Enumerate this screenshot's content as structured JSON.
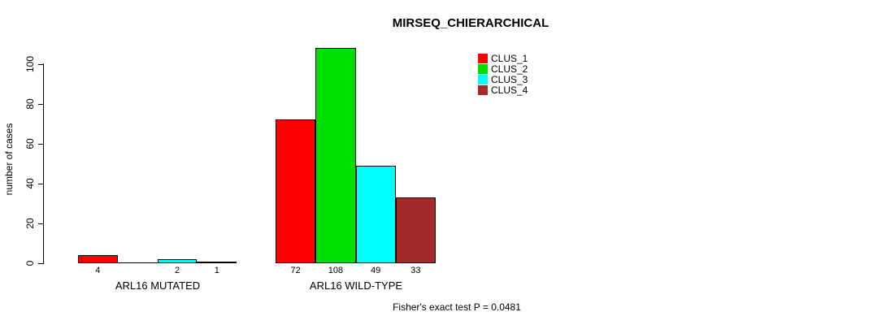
{
  "title": "MIRSEQ_CHIERARCHICAL",
  "footer": "Fisher's exact test P = 0.0481",
  "colors": {
    "background": "#ffffff",
    "axis": "#000000",
    "clus_1": "#FF0000",
    "clus_2": "#00E000",
    "clus_3": "#00FFFF",
    "clus_4": "#A52A2A"
  },
  "chart_data": {
    "type": "bar",
    "title": "MIRSEQ_CHIERARCHICAL",
    "xlabel": "",
    "ylabel": "number of cases",
    "ylim": [
      0,
      100
    ],
    "yticks": [
      0,
      20,
      40,
      60,
      80,
      100
    ],
    "grid": "off",
    "legend_position": "top-right",
    "categories": [
      "ARL16 MUTATED",
      "ARL16 WILD-TYPE"
    ],
    "series": [
      {
        "name": "CLUS_1",
        "color": "#FF0000",
        "values": [
          4,
          72
        ]
      },
      {
        "name": "CLUS_2",
        "color": "#00E000",
        "values": [
          0,
          108
        ]
      },
      {
        "name": "CLUS_3",
        "color": "#00FFFF",
        "values": [
          2,
          49
        ]
      },
      {
        "name": "CLUS_4",
        "color": "#A52A2A",
        "values": [
          1,
          33
        ]
      }
    ],
    "bar_value_labels": {
      "ARL16 MUTATED": [
        4,
        null,
        2,
        1
      ],
      "ARL16 WILD-TYPE": [
        72,
        108,
        49,
        33
      ]
    },
    "annotation": "Fisher's exact test P = 0.0481"
  }
}
